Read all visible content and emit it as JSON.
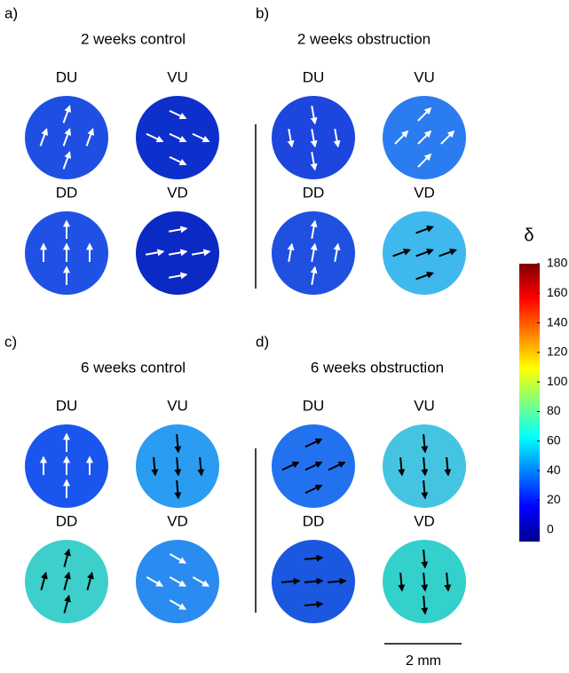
{
  "panels": [
    {
      "label": "a)",
      "title": "2 weeks control",
      "discs": [
        {
          "name": "DU",
          "color": "#1f4fe2",
          "arrow_color": "#ffffff"
        },
        {
          "name": "VU",
          "color": "#0d30cc",
          "arrow_color": "#ffffff"
        },
        {
          "name": "DD",
          "color": "#1f52e4",
          "arrow_color": "#ffffff"
        },
        {
          "name": "VD",
          "color": "#0b2ac4",
          "arrow_color": "#ffffff"
        }
      ]
    },
    {
      "label": "b)",
      "title": "2 weeks obstruction",
      "discs": [
        {
          "name": "DU",
          "color": "#1c46de",
          "arrow_color": "#ffffff"
        },
        {
          "name": "VU",
          "color": "#2a7cf0",
          "arrow_color": "#ffffff"
        },
        {
          "name": "DD",
          "color": "#1f50e0",
          "arrow_color": "#ffffff"
        },
        {
          "name": "VD",
          "color": "#3fb8ee",
          "arrow_color": "#000000"
        }
      ]
    },
    {
      "label": "c)",
      "title": "6 weeks control",
      "discs": [
        {
          "name": "DU",
          "color": "#1a55ee",
          "arrow_color": "#ffffff"
        },
        {
          "name": "VU",
          "color": "#2a9cf2",
          "arrow_color": "#000000"
        },
        {
          "name": "DD",
          "color": "#3dcfcc",
          "arrow_color": "#000000"
        },
        {
          "name": "VD",
          "color": "#2a8cf0",
          "arrow_color": "#ffffff"
        }
      ]
    },
    {
      "label": "d)",
      "title": "6 weeks obstruction",
      "discs": [
        {
          "name": "DU",
          "color": "#2272f0",
          "arrow_color": "#000000"
        },
        {
          "name": "VU",
          "color": "#45c4e2",
          "arrow_color": "#000000"
        },
        {
          "name": "DD",
          "color": "#1a58e0",
          "arrow_color": "#000000"
        },
        {
          "name": "VD",
          "color": "#33d0cc",
          "arrow_color": "#000000"
        }
      ]
    }
  ],
  "colorbar": {
    "symbol": "δ",
    "lim": [
      -8,
      180
    ],
    "ticks": [
      0,
      20,
      40,
      60,
      80,
      100,
      120,
      140,
      160,
      180
    ]
  },
  "scale_bar": "2 mm"
}
